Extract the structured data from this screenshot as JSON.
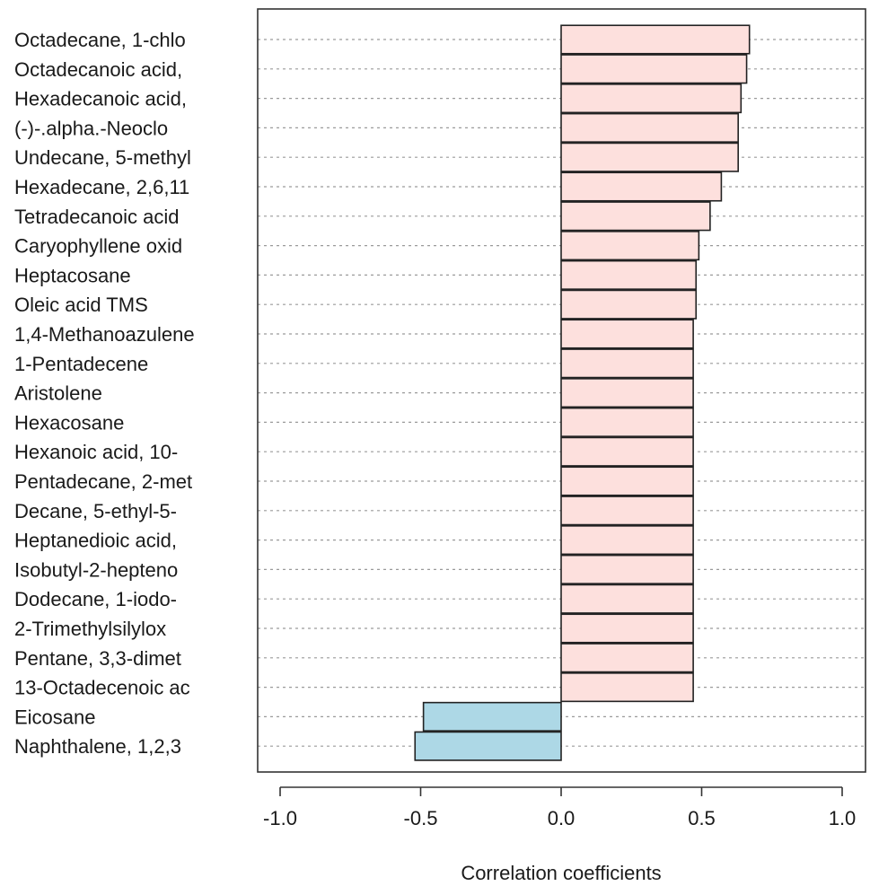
{
  "chart_data": {
    "type": "bar",
    "orientation": "horizontal",
    "categories": [
      "Octadecane, 1-chlo",
      "Octadecanoic acid,",
      "Hexadecanoic acid,",
      "(-)-.alpha.-Neoclo",
      "Undecane, 5-methyl",
      "Hexadecane, 2,6,11",
      "Tetradecanoic acid",
      "Caryophyllene oxid",
      "Heptacosane",
      "Oleic acid TMS",
      "1,4-Methanoazulene",
      "1-Pentadecene",
      "Aristolene",
      "Hexacosane",
      "Hexanoic acid, 10-",
      "Pentadecane, 2-met",
      "Decane, 5-ethyl-5-",
      "Heptanedioic acid,",
      "Isobutyl-2-hepteno",
      "Dodecane, 1-iodo-",
      "2-Trimethylsilylox",
      "Pentane, 3,3-dimet",
      "13-Octadecenoic ac",
      "Eicosane",
      "Naphthalene, 1,2,3"
    ],
    "values": [
      0.67,
      0.66,
      0.64,
      0.63,
      0.63,
      0.57,
      0.53,
      0.49,
      0.48,
      0.48,
      0.47,
      0.47,
      0.47,
      0.47,
      0.47,
      0.47,
      0.47,
      0.47,
      0.47,
      0.47,
      0.47,
      0.47,
      0.47,
      -0.49,
      -0.52
    ],
    "xlim": [
      -1.05,
      1.05
    ],
    "xticks": [
      -1.0,
      -0.5,
      0.0,
      0.5,
      1.0
    ],
    "xtick_labels": [
      "-1.0",
      "-0.5",
      "0.0",
      "0.5",
      "1.0"
    ],
    "xlabel": "Correlation coefficients",
    "ylabel": "",
    "title": "",
    "grid": "horizontal dashed",
    "colors": {
      "positive": "#fde0dd",
      "negative": "#add8e6"
    }
  }
}
